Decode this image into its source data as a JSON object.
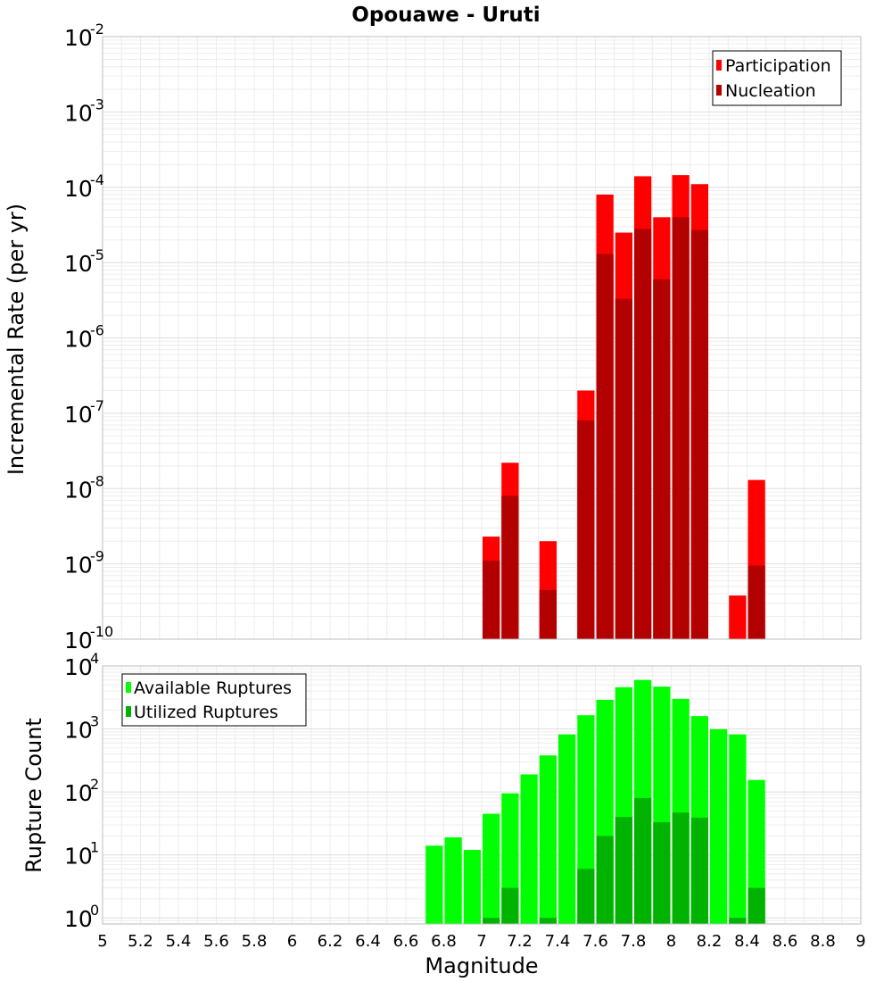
{
  "chart_data": [
    {
      "type": "bar",
      "title": "Opouawe - Uruti",
      "xlabel": "Magnitude",
      "ylabel": "Incremental Rate (per yr)",
      "yscale": "log",
      "ylim": [
        1e-10,
        0.01
      ],
      "xlim": [
        5,
        9
      ],
      "bin_width": 0.1,
      "grid": true,
      "legend_position": "top-right",
      "series": [
        {
          "name": "Participation",
          "color": "#ff0000",
          "x": [
            7.05,
            7.15,
            7.35,
            7.55,
            7.65,
            7.75,
            7.85,
            7.95,
            8.05,
            8.15,
            8.35,
            8.45
          ],
          "values": [
            2.3e-09,
            2.2e-08,
            2e-09,
            2e-07,
            8e-05,
            2.5e-05,
            0.00014,
            4e-05,
            0.000145,
            0.00011,
            3.8e-10,
            1.3e-08
          ]
        },
        {
          "name": "Nucleation",
          "color": "#b30000",
          "x": [
            7.05,
            7.15,
            7.35,
            7.55,
            7.65,
            7.75,
            7.85,
            7.95,
            8.05,
            8.15,
            8.45
          ],
          "values": [
            1.1e-09,
            8e-09,
            4.5e-10,
            8e-08,
            1.3e-05,
            3.3e-06,
            2.8e-05,
            6e-06,
            4e-05,
            2.7e-05,
            9.5e-10
          ]
        }
      ]
    },
    {
      "type": "bar",
      "xlabel": "Magnitude",
      "ylabel": "Rupture Count",
      "yscale": "log",
      "ylim": [
        0.8,
        10000
      ],
      "xlim": [
        5,
        9
      ],
      "bin_width": 0.1,
      "grid": true,
      "legend_position": "top-left",
      "series": [
        {
          "name": "Available Ruptures",
          "color": "#00ff00",
          "x": [
            6.75,
            6.85,
            6.95,
            7.05,
            7.15,
            7.25,
            7.35,
            7.45,
            7.55,
            7.65,
            7.75,
            7.85,
            7.95,
            8.05,
            8.15,
            8.25,
            8.35,
            8.45
          ],
          "values": [
            14,
            19,
            12,
            45,
            95,
            190,
            380,
            820,
            1650,
            2900,
            4600,
            6000,
            4700,
            3000,
            1600,
            990,
            820,
            155
          ]
        },
        {
          "name": "Utilized Ruptures",
          "color": "#00b300",
          "x": [
            7.05,
            7.15,
            7.35,
            7.55,
            7.65,
            7.75,
            7.85,
            7.95,
            8.05,
            8.15,
            8.35,
            8.45
          ],
          "values": [
            1,
            3,
            1,
            6,
            20,
            40,
            80,
            33,
            47,
            39,
            1,
            3
          ]
        }
      ]
    }
  ],
  "x_ticks": [
    "5",
    "5.2",
    "5.4",
    "5.6",
    "5.8",
    "6",
    "6.2",
    "6.4",
    "6.6",
    "6.8",
    "7",
    "7.2",
    "7.4",
    "7.6",
    "7.8",
    "8",
    "8.2",
    "8.4",
    "8.6",
    "8.8",
    "9"
  ],
  "top_y_tick_exponents": [
    "-2",
    "-3",
    "-4",
    "-5",
    "-6",
    "-7",
    "-8",
    "-9",
    "-10"
  ],
  "bottom_y_tick_exponents": [
    "4",
    "3",
    "2",
    "1",
    "0"
  ],
  "y_tick_base": "10"
}
